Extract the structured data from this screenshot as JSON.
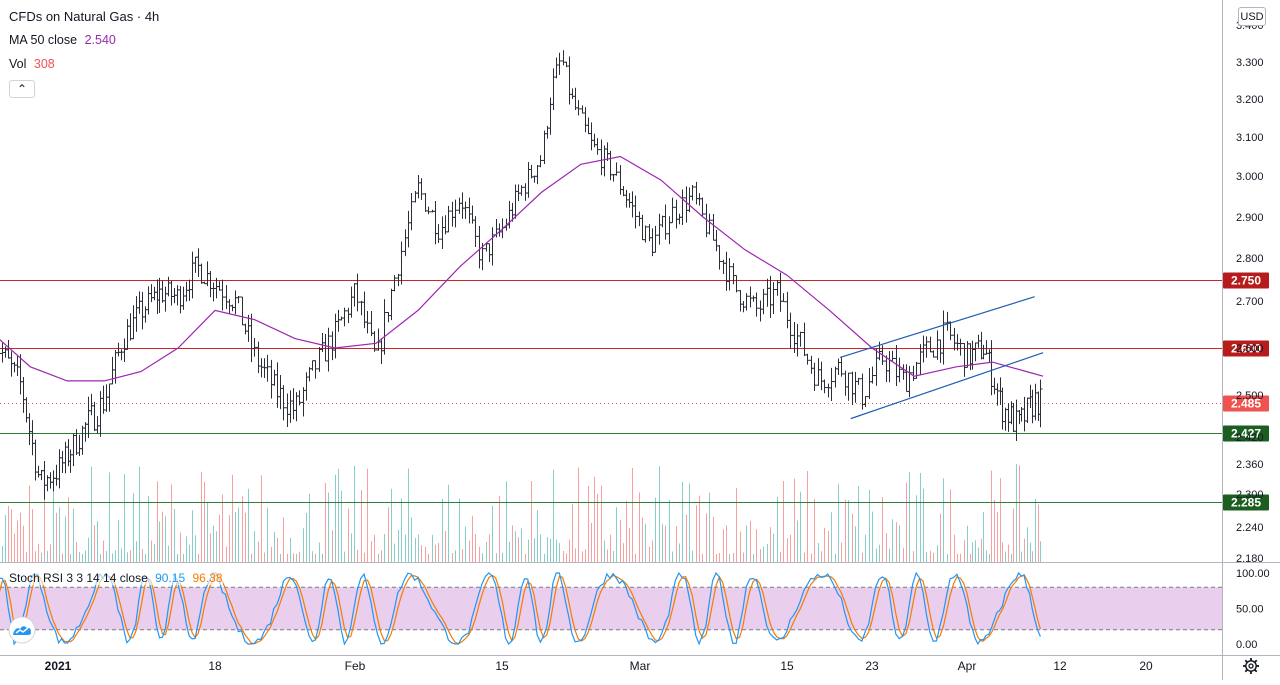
{
  "header": {
    "title": "CFDs on Natural Gas · 4h",
    "ma_label": "MA 50 close",
    "ma_value": "2.540",
    "vol_label": "Vol",
    "vol_value": "308",
    "collapse_icon": "chevron-up-icon",
    "currency": "USD"
  },
  "colors": {
    "up": "#6f7a82",
    "candle": "#2a2e39",
    "ma": "#9c27b0",
    "red_line": "#c62828",
    "green_line": "#2e7d32",
    "channel": "#1e5cb3",
    "stoch_k": "#2196f3",
    "stoch_d": "#f57c00",
    "stoch_band": "#e1bee7",
    "last_price": "#ef5350"
  },
  "stoch": {
    "label": "Stoch RSI 3 3 14 14 close",
    "k_value": "90.15",
    "d_value": "96.38",
    "axis_labels": [
      "100.00",
      "50.00",
      "0.00"
    ]
  },
  "chart_data": {
    "type": "candlestick",
    "title": "CFDs on Natural Gas · 4h",
    "y_tick_labels": [
      "3.400",
      "3.300",
      "3.200",
      "3.100",
      "3.000",
      "2.900",
      "2.800",
      "2.700",
      "2.600",
      "2.500",
      "2.420",
      "2.360",
      "2.300",
      "2.240",
      "2.180"
    ],
    "x_tick_labels": [
      "2021",
      "18",
      "Feb",
      "15",
      "Mar",
      "15",
      "23",
      "Apr",
      "12",
      "20"
    ],
    "price_levels": [
      {
        "label": "2.750",
        "value": 2.75,
        "kind": "resistance-red"
      },
      {
        "label": "2.600",
        "value": 2.6,
        "kind": "resistance-red"
      },
      {
        "label": "2.485",
        "value": 2.485,
        "kind": "last-price"
      },
      {
        "label": "2.427",
        "value": 2.427,
        "kind": "support-green"
      },
      {
        "label": "2.285",
        "value": 2.285,
        "kind": "support-green"
      }
    ],
    "channel": {
      "upper": [
        [
          "Mar 19",
          2.58
        ],
        [
          "Apr 8",
          2.71
        ]
      ],
      "lower": [
        [
          "Mar 20",
          2.455
        ],
        [
          "Apr 9",
          2.59
        ]
      ]
    },
    "price_path": [
      [
        "Dec 24",
        2.62
      ],
      [
        "Dec 27",
        2.52
      ],
      [
        "Dec 29",
        2.32
      ],
      [
        "Dec 31",
        2.35
      ],
      [
        "Jan 3",
        2.44
      ],
      [
        "Jan 5",
        2.49
      ],
      [
        "Jan 7",
        2.62
      ],
      [
        "Jan 9",
        2.68
      ],
      [
        "Jan 11",
        2.72
      ],
      [
        "Jan 13",
        2.71
      ],
      [
        "Jan 15",
        2.78
      ],
      [
        "Jan 17",
        2.74
      ],
      [
        "Jan 19",
        2.7
      ],
      [
        "Jan 21",
        2.58
      ],
      [
        "Jan 23",
        2.51
      ],
      [
        "Jan 25",
        2.47
      ],
      [
        "Jan 27",
        2.56
      ],
      [
        "Jan 29",
        2.63
      ],
      [
        "Jan 31",
        2.72
      ],
      [
        "Feb 2",
        2.57
      ],
      [
        "Feb 4",
        2.78
      ],
      [
        "Feb 6",
        2.97
      ],
      [
        "Feb 8",
        2.87
      ],
      [
        "Feb 10",
        2.95
      ],
      [
        "Feb 12",
        2.8
      ],
      [
        "Feb 14",
        2.87
      ],
      [
        "Feb 16",
        2.97
      ],
      [
        "Feb 18",
        3.05
      ],
      [
        "Feb 19",
        3.23
      ],
      [
        "Feb 20",
        3.31
      ],
      [
        "Feb 21",
        3.2
      ],
      [
        "Feb 23",
        3.08
      ],
      [
        "Feb 25",
        3.02
      ],
      [
        "Feb 27",
        2.93
      ],
      [
        "Mar 1",
        2.83
      ],
      [
        "Mar 3",
        2.91
      ],
      [
        "Mar 5",
        2.95
      ],
      [
        "Mar 7",
        2.84
      ],
      [
        "Mar 9",
        2.73
      ],
      [
        "Mar 11",
        2.68
      ],
      [
        "Mar 13",
        2.72
      ],
      [
        "Mar 15",
        2.62
      ],
      [
        "Mar 17",
        2.53
      ],
      [
        "Mar 19",
        2.56
      ],
      [
        "Mar 21",
        2.5
      ],
      [
        "Mar 23",
        2.58
      ],
      [
        "Mar 25",
        2.53
      ],
      [
        "Mar 27",
        2.59
      ],
      [
        "Mar 29",
        2.63
      ],
      [
        "Mar 31",
        2.58
      ],
      [
        "Apr 2",
        2.6
      ],
      [
        "Apr 4",
        2.48
      ],
      [
        "Apr 6",
        2.44
      ],
      [
        "Apr 8",
        2.49
      ],
      [
        "Apr 9",
        2.485
      ]
    ],
    "ma_path": [
      [
        "Dec 24",
        2.63
      ],
      [
        "Dec 28",
        2.56
      ],
      [
        "Jan 1",
        2.53
      ],
      [
        "Jan 5",
        2.53
      ],
      [
        "Jan 9",
        2.55
      ],
      [
        "Jan 13",
        2.6
      ],
      [
        "Jan 17",
        2.68
      ],
      [
        "Jan 21",
        2.66
      ],
      [
        "Jan 25",
        2.62
      ],
      [
        "Jan 29",
        2.6
      ],
      [
        "Feb 2",
        2.61
      ],
      [
        "Feb 6",
        2.68
      ],
      [
        "Feb 10",
        2.78
      ],
      [
        "Feb 14",
        2.87
      ],
      [
        "Feb 18",
        2.96
      ],
      [
        "Feb 22",
        3.03
      ],
      [
        "Feb 26",
        3.05
      ],
      [
        "Mar 2",
        2.99
      ],
      [
        "Mar 6",
        2.9
      ],
      [
        "Mar 10",
        2.82
      ],
      [
        "Mar 14",
        2.76
      ],
      [
        "Mar 18",
        2.68
      ],
      [
        "Mar 22",
        2.6
      ],
      [
        "Mar 26",
        2.54
      ],
      [
        "Mar 30",
        2.56
      ],
      [
        "Apr 3",
        2.57
      ],
      [
        "Apr 7",
        2.55
      ],
      [
        "Apr 9",
        2.54
      ]
    ]
  }
}
